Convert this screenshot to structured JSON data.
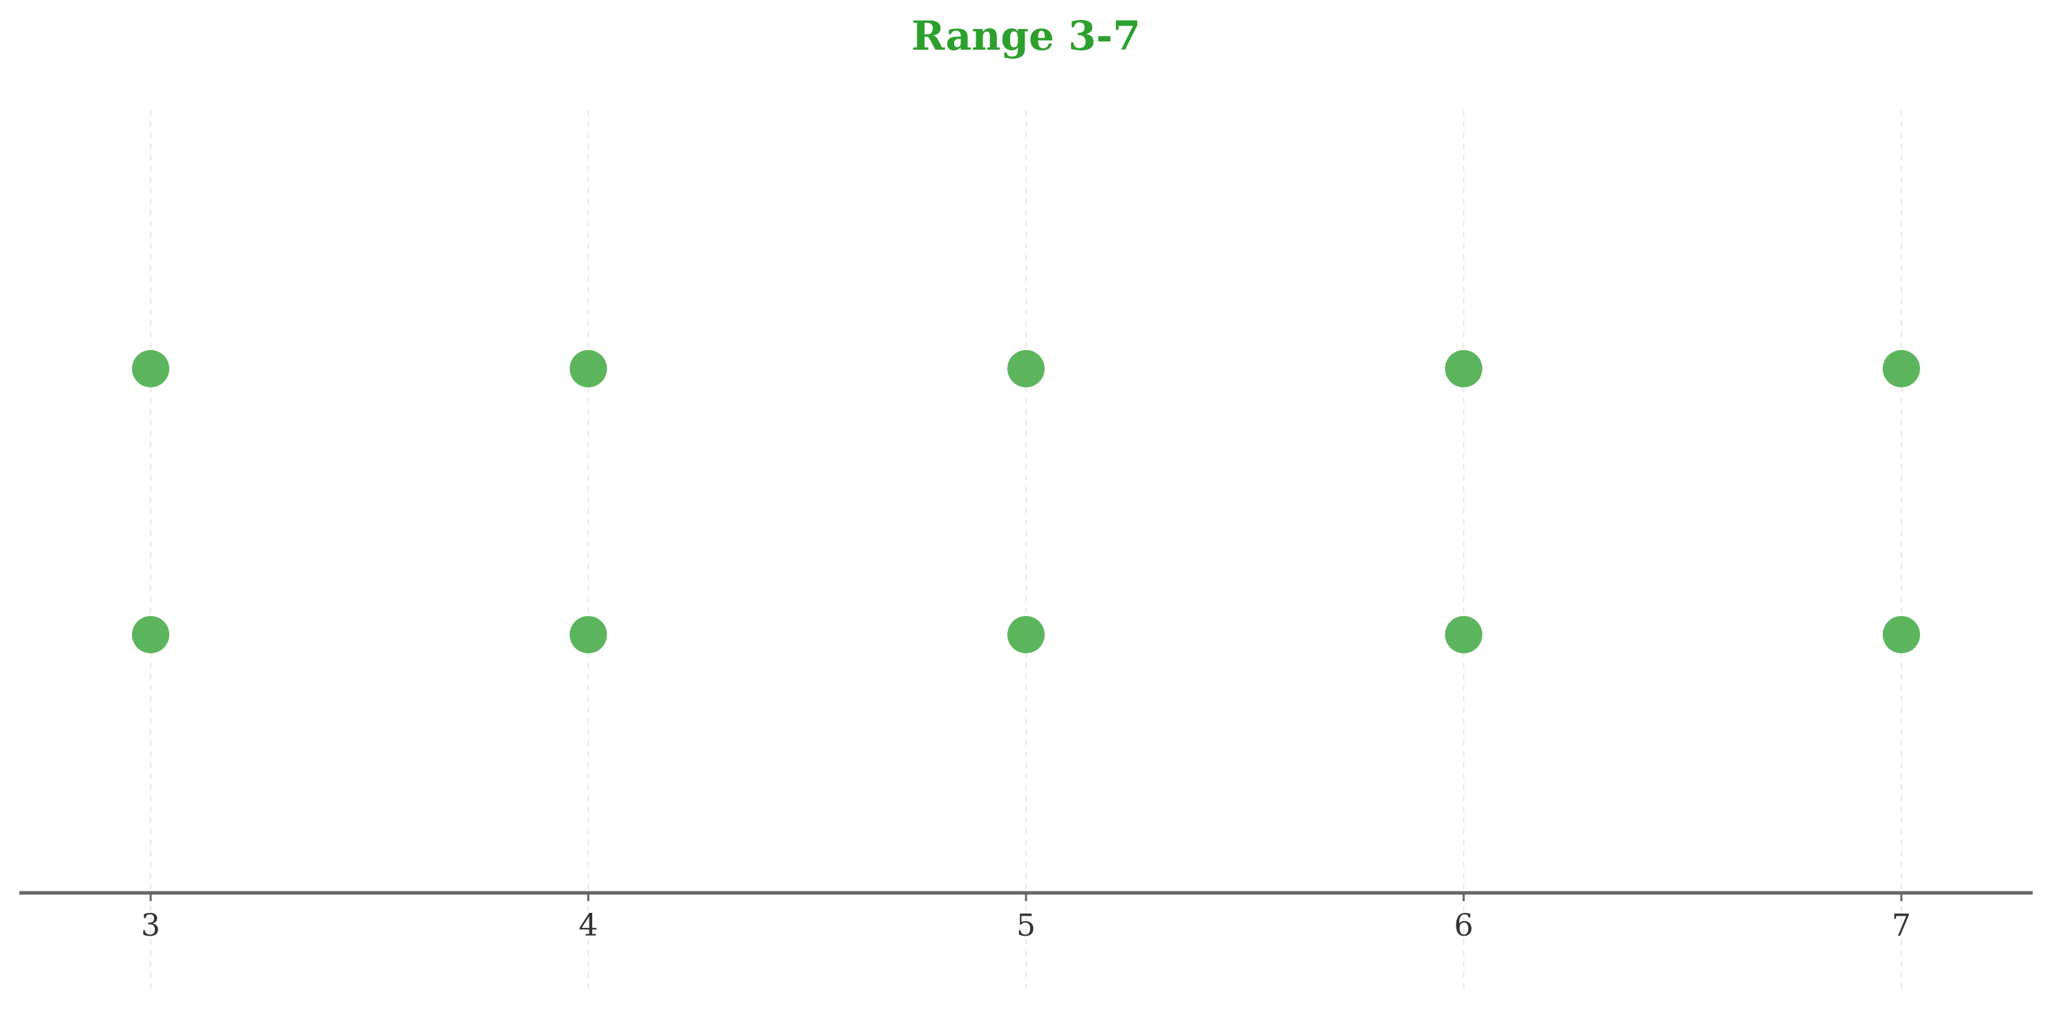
{
  "chart_data": {
    "type": "scatter",
    "title": "Range 3-7",
    "xlabel": "",
    "ylabel": "",
    "x_ticks": [
      "3",
      "4",
      "5",
      "6",
      "7"
    ],
    "xlim": [
      2.7,
      7.3
    ],
    "ylim": [
      0,
      1
    ],
    "grid": "vertical dashed",
    "y_axis_visible": false,
    "colors": {
      "title": "#2ca02c",
      "points": "#5cb55c",
      "axis": "#666666",
      "grid": "#e6e6e6",
      "tick_text": "#333333"
    },
    "series": [
      {
        "points": [
          {
            "x": 3,
            "y": 0.67
          },
          {
            "x": 4,
            "y": 0.67
          },
          {
            "x": 5,
            "y": 0.67
          },
          {
            "x": 6,
            "y": 0.67
          },
          {
            "x": 7,
            "y": 0.67
          }
        ]
      },
      {
        "points": [
          {
            "x": 3,
            "y": 0.33
          },
          {
            "x": 4,
            "y": 0.33
          },
          {
            "x": 5,
            "y": 0.33
          },
          {
            "x": 6,
            "y": 0.33
          },
          {
            "x": 7,
            "y": 0.33
          }
        ]
      }
    ]
  }
}
